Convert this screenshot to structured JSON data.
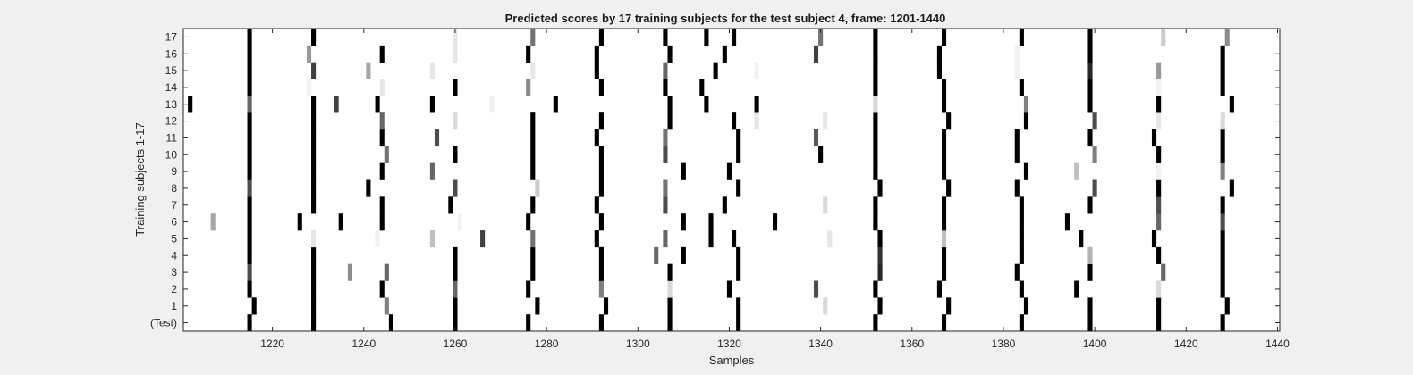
{
  "chart_data": {
    "type": "heatmap",
    "title": "Predicted scores by 17 training subjects for the test subject 4, frame: 1201-1440",
    "xlabel": "Samples",
    "ylabel": "Training subjects 1-17",
    "xlim": [
      1201,
      1440
    ],
    "x_ticks": [
      1220,
      1240,
      1260,
      1280,
      1300,
      1320,
      1340,
      1360,
      1380,
      1400,
      1420,
      1440
    ],
    "x_tick_labels": [
      "1220",
      "1240",
      "1260",
      "1280",
      "1300",
      "1320",
      "1340",
      "1360",
      "1380",
      "1400",
      "1420",
      "1440"
    ],
    "rows": [
      "(Test)",
      "1",
      "2",
      "3",
      "4",
      "5",
      "6",
      "7",
      "8",
      "9",
      "10",
      "11",
      "12",
      "13",
      "14",
      "15",
      "16",
      "17"
    ],
    "row_labels_top_to_bottom": [
      "17",
      "16",
      "15",
      "14",
      "13",
      "12",
      "11",
      "10",
      "9",
      "8",
      "7",
      "6",
      "5",
      "4",
      "3",
      "2",
      "1",
      "(Test)"
    ],
    "cell_encoding": "each mark is a one-sample-wide vertical cell; value 0-1 is the predicted score, rendered black (1) to white (0)",
    "series": [
      {
        "row": "(Test)",
        "cells": [
          [
            1215,
            1
          ],
          [
            1229,
            1
          ],
          [
            1246,
            1
          ],
          [
            1260,
            1
          ],
          [
            1276,
            1
          ],
          [
            1292,
            1
          ],
          [
            1307,
            1
          ],
          [
            1322,
            1
          ],
          [
            1352,
            1
          ],
          [
            1367,
            1
          ],
          [
            1384,
            1
          ],
          [
            1399,
            1
          ],
          [
            1414,
            1
          ],
          [
            1428,
            1
          ]
        ]
      },
      {
        "row": "1",
        "cells": [
          [
            1216,
            1
          ],
          [
            1229,
            1
          ],
          [
            1245,
            0.5
          ],
          [
            1260,
            1
          ],
          [
            1278,
            1
          ],
          [
            1293,
            1
          ],
          [
            1307,
            1
          ],
          [
            1322,
            1
          ],
          [
            1341,
            0.15
          ],
          [
            1353,
            1
          ],
          [
            1368,
            1
          ],
          [
            1385,
            1
          ],
          [
            1399,
            1
          ],
          [
            1414,
            1
          ],
          [
            1429,
            1
          ]
        ]
      },
      {
        "row": "2",
        "cells": [
          [
            1215,
            1
          ],
          [
            1229,
            1
          ],
          [
            1244,
            1
          ],
          [
            1260,
            0.6
          ],
          [
            1276,
            1
          ],
          [
            1292,
            0.5
          ],
          [
            1307,
            0.15
          ],
          [
            1320,
            1
          ],
          [
            1339,
            0.7
          ],
          [
            1352,
            1
          ],
          [
            1366,
            1
          ],
          [
            1384,
            1
          ],
          [
            1396,
            1
          ],
          [
            1414,
            0.15
          ],
          [
            1428,
            1
          ]
        ]
      },
      {
        "row": "3",
        "cells": [
          [
            1215,
            0.7
          ],
          [
            1229,
            1
          ],
          [
            1237,
            0.45
          ],
          [
            1245,
            0.6
          ],
          [
            1260,
            1
          ],
          [
            1277,
            1
          ],
          [
            1292,
            1
          ],
          [
            1307,
            1
          ],
          [
            1322,
            1
          ],
          [
            1353,
            0.85
          ],
          [
            1367,
            1
          ],
          [
            1383,
            1
          ],
          [
            1399,
            1
          ],
          [
            1415,
            0.6
          ],
          [
            1428,
            1
          ]
        ]
      },
      {
        "row": "4",
        "cells": [
          [
            1215,
            1
          ],
          [
            1229,
            1
          ],
          [
            1260,
            1
          ],
          [
            1277,
            1
          ],
          [
            1292,
            1
          ],
          [
            1304,
            0.6
          ],
          [
            1310,
            1
          ],
          [
            1322,
            1
          ],
          [
            1353,
            0.8
          ],
          [
            1367,
            1
          ],
          [
            1384,
            1
          ],
          [
            1399,
            0.3
          ],
          [
            1414,
            1
          ],
          [
            1428,
            1
          ]
        ]
      },
      {
        "row": "5",
        "cells": [
          [
            1215,
            1
          ],
          [
            1229,
            0.1
          ],
          [
            1243,
            0.05
          ],
          [
            1255,
            0.25
          ],
          [
            1266,
            0.75
          ],
          [
            1277,
            0.55
          ],
          [
            1291,
            1
          ],
          [
            1306,
            0.6
          ],
          [
            1316,
            1
          ],
          [
            1321,
            1
          ],
          [
            1342,
            0.1
          ],
          [
            1353,
            1
          ],
          [
            1367,
            0.25
          ],
          [
            1384,
            1
          ],
          [
            1397,
            1
          ],
          [
            1413,
            1
          ],
          [
            1428,
            1
          ]
        ]
      },
      {
        "row": "6",
        "cells": [
          [
            1207,
            0.35
          ],
          [
            1215,
            1
          ],
          [
            1226,
            1
          ],
          [
            1235,
            1
          ],
          [
            1244,
            1
          ],
          [
            1261,
            0.05
          ],
          [
            1276,
            1
          ],
          [
            1292,
            1
          ],
          [
            1310,
            1
          ],
          [
            1316,
            1
          ],
          [
            1330,
            1
          ],
          [
            1352,
            1
          ],
          [
            1367,
            1
          ],
          [
            1384,
            1
          ],
          [
            1394,
            1
          ],
          [
            1414,
            0.6
          ],
          [
            1428,
            0.7
          ]
        ]
      },
      {
        "row": "7",
        "cells": [
          [
            1215,
            1
          ],
          [
            1229,
            1
          ],
          [
            1244,
            1
          ],
          [
            1259,
            1
          ],
          [
            1277,
            1
          ],
          [
            1291,
            1
          ],
          [
            1306,
            0.7
          ],
          [
            1319,
            1
          ],
          [
            1341,
            0.15
          ],
          [
            1352,
            1
          ],
          [
            1367,
            1
          ],
          [
            1384,
            1
          ],
          [
            1399,
            1
          ],
          [
            1414,
            0.7
          ],
          [
            1428,
            1
          ]
        ]
      },
      {
        "row": "8",
        "cells": [
          [
            1215,
            0.7
          ],
          [
            1229,
            1
          ],
          [
            1241,
            1
          ],
          [
            1260,
            0.7
          ],
          [
            1278,
            0.2
          ],
          [
            1292,
            1
          ],
          [
            1306,
            0.55
          ],
          [
            1322,
            1
          ],
          [
            1353,
            1
          ],
          [
            1368,
            1
          ],
          [
            1383,
            1
          ],
          [
            1400,
            0.7
          ],
          [
            1414,
            1
          ],
          [
            1430,
            1
          ]
        ]
      },
      {
        "row": "9",
        "cells": [
          [
            1215,
            1
          ],
          [
            1229,
            1
          ],
          [
            1244,
            1
          ],
          [
            1255,
            0.6
          ],
          [
            1277,
            1
          ],
          [
            1292,
            1
          ],
          [
            1310,
            1
          ],
          [
            1320,
            1
          ],
          [
            1352,
            1
          ],
          [
            1367,
            1
          ],
          [
            1385,
            1
          ],
          [
            1396,
            0.25
          ],
          [
            1414,
            0.05
          ],
          [
            1428,
            0.5
          ]
        ]
      },
      {
        "row": "10",
        "cells": [
          [
            1215,
            1
          ],
          [
            1229,
            1
          ],
          [
            1245,
            0.55
          ],
          [
            1260,
            1
          ],
          [
            1277,
            1
          ],
          [
            1292,
            1
          ],
          [
            1306,
            0.7
          ],
          [
            1322,
            1
          ],
          [
            1340,
            1
          ],
          [
            1352,
            1
          ],
          [
            1367,
            1
          ],
          [
            1383,
            1
          ],
          [
            1400,
            0.5
          ],
          [
            1414,
            1
          ],
          [
            1428,
            1
          ]
        ]
      },
      {
        "row": "11",
        "cells": [
          [
            1215,
            1
          ],
          [
            1229,
            1
          ],
          [
            1244,
            1
          ],
          [
            1256,
            0.7
          ],
          [
            1277,
            1
          ],
          [
            1291,
            1
          ],
          [
            1306,
            0.55
          ],
          [
            1322,
            1
          ],
          [
            1339,
            0.65
          ],
          [
            1352,
            1
          ],
          [
            1367,
            1
          ],
          [
            1383,
            1
          ],
          [
            1399,
            1
          ],
          [
            1413,
            1
          ],
          [
            1428,
            1
          ]
        ]
      },
      {
        "row": "12",
        "cells": [
          [
            1215,
            1
          ],
          [
            1229,
            1
          ],
          [
            1244,
            0.6
          ],
          [
            1260,
            0.15
          ],
          [
            1277,
            1
          ],
          [
            1292,
            1
          ],
          [
            1307,
            1
          ],
          [
            1321,
            1
          ],
          [
            1326,
            0.1
          ],
          [
            1341,
            0.1
          ],
          [
            1352,
            1
          ],
          [
            1368,
            1
          ],
          [
            1385,
            1
          ],
          [
            1400,
            0.7
          ],
          [
            1414,
            0.1
          ],
          [
            1428,
            0.15
          ]
        ]
      },
      {
        "row": "13",
        "cells": [
          [
            1202,
            1
          ],
          [
            1215,
            0.6
          ],
          [
            1229,
            1
          ],
          [
            1234,
            0.75
          ],
          [
            1243,
            1
          ],
          [
            1255,
            1
          ],
          [
            1268,
            0.05
          ],
          [
            1282,
            1
          ],
          [
            1307,
            1
          ],
          [
            1315,
            1
          ],
          [
            1326,
            1
          ],
          [
            1352,
            0.15
          ],
          [
            1367,
            1
          ],
          [
            1385,
            0.5
          ],
          [
            1399,
            1
          ],
          [
            1414,
            1
          ],
          [
            1430,
            1
          ]
        ]
      },
      {
        "row": "14",
        "cells": [
          [
            1215,
            1
          ],
          [
            1228,
            0.05
          ],
          [
            1244,
            0.1
          ],
          [
            1260,
            1
          ],
          [
            1276,
            0.45
          ],
          [
            1292,
            1
          ],
          [
            1306,
            1
          ],
          [
            1314,
            1
          ],
          [
            1352,
            1
          ],
          [
            1367,
            1
          ],
          [
            1384,
            1
          ],
          [
            1399,
            1
          ],
          [
            1414,
            0.05
          ],
          [
            1428,
            1
          ]
        ]
      },
      {
        "row": "15",
        "cells": [
          [
            1215,
            1
          ],
          [
            1229,
            0.75
          ],
          [
            1241,
            0.35
          ],
          [
            1255,
            0.1
          ],
          [
            1277,
            0.1
          ],
          [
            1291,
            1
          ],
          [
            1306,
            0.6
          ],
          [
            1317,
            1
          ],
          [
            1326,
            0.05
          ],
          [
            1352,
            1
          ],
          [
            1366,
            1
          ],
          [
            1383,
            0.05
          ],
          [
            1399,
            0.85
          ],
          [
            1414,
            0.4
          ],
          [
            1428,
            1
          ]
        ]
      },
      {
        "row": "16",
        "cells": [
          [
            1215,
            1
          ],
          [
            1228,
            0.4
          ],
          [
            1244,
            1
          ],
          [
            1260,
            0.1
          ],
          [
            1276,
            1
          ],
          [
            1291,
            1
          ],
          [
            1307,
            1
          ],
          [
            1319,
            1
          ],
          [
            1339,
            0.75
          ],
          [
            1352,
            1
          ],
          [
            1366,
            1
          ],
          [
            1383,
            0.05
          ],
          [
            1399,
            1
          ],
          [
            1428,
            1
          ]
        ]
      },
      {
        "row": "17",
        "cells": [
          [
            1215,
            1
          ],
          [
            1229,
            1
          ],
          [
            1260,
            0.1
          ],
          [
            1277,
            0.55
          ],
          [
            1292,
            1
          ],
          [
            1306,
            1
          ],
          [
            1315,
            1
          ],
          [
            1321,
            1
          ],
          [
            1340,
            0.55
          ],
          [
            1352,
            1
          ],
          [
            1367,
            1
          ],
          [
            1384,
            1
          ],
          [
            1399,
            1
          ],
          [
            1415,
            0.2
          ],
          [
            1429,
            0.45
          ]
        ]
      }
    ]
  }
}
